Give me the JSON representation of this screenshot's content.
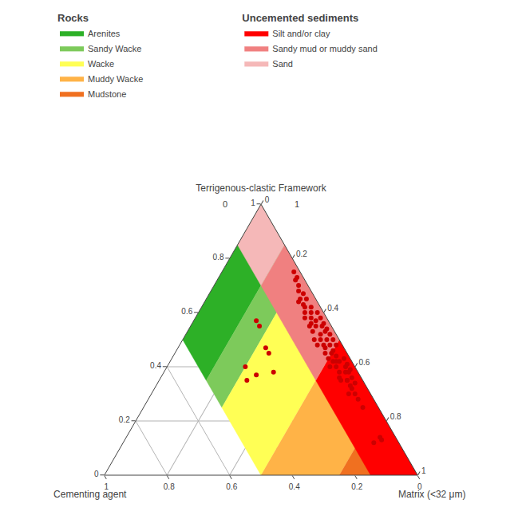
{
  "chart_data": {
    "type": "ternary",
    "grid": true,
    "ternary_axes": [
      {
        "label": "Terrigenous-clastic Framework",
        "lim": [
          0,
          1
        ],
        "ticks": [
          0,
          0.2,
          0.4,
          0.6,
          0.8,
          1
        ]
      },
      {
        "label": "Matrix (<32 μm)",
        "lim": [
          0,
          1
        ],
        "ticks": [
          0,
          0.2,
          0.4,
          0.6,
          0.8,
          1
        ]
      },
      {
        "label": "Cementing agent",
        "lim": [
          0,
          1
        ],
        "ticks": [
          0,
          0.2,
          0.4,
          0.6,
          0.8,
          1
        ]
      }
    ],
    "annotations": [
      {
        "text": "0"
      },
      {
        "text": "1"
      }
    ],
    "legend_groups": [
      {
        "title": "Rocks",
        "series": [
          {
            "name": "Arenites",
            "color": "#2db027",
            "type": "area",
            "values": [
              [
                1.0,
                0.0,
                0.0
              ],
              [
                0.85,
                0.15,
                0.0
              ],
              [
                0.35,
                0.15,
                0.5
              ],
              [
                0.5,
                0.0,
                0.5
              ]
            ]
          },
          {
            "name": "Sandy Wacke",
            "color": "#7dca5b",
            "type": "area",
            "values": [
              [
                0.85,
                0.15,
                0.0
              ],
              [
                0.75,
                0.25,
                0.0
              ],
              [
                0.25,
                0.25,
                0.5
              ],
              [
                0.35,
                0.15,
                0.5
              ]
            ]
          },
          {
            "name": "Wacke",
            "color": "#ffff55",
            "type": "area",
            "values": [
              [
                0.75,
                0.25,
                0.0
              ],
              [
                0.5,
                0.5,
                0.0
              ],
              [
                0.0,
                0.5,
                0.5
              ],
              [
                0.25,
                0.25,
                0.5
              ]
            ]
          },
          {
            "name": "Muddy Wacke",
            "color": "#ffb347",
            "type": "area",
            "values": [
              [
                0.5,
                0.5,
                0.0
              ],
              [
                0.25,
                0.75,
                0.0
              ],
              [
                0.0,
                0.75,
                0.25
              ],
              [
                0.0,
                0.5,
                0.5
              ]
            ]
          },
          {
            "name": "Mudstone",
            "color": "#f07020",
            "type": "area",
            "values": [
              [
                0.25,
                0.75,
                0.0
              ],
              [
                0.0,
                1.0,
                0.0
              ],
              [
                0.0,
                0.75,
                0.25
              ]
            ]
          }
        ]
      },
      {
        "title": "Uncemented sediments",
        "series": [
          {
            "name": "Silt and/or clay",
            "color": "#ff0000",
            "type": "area",
            "values": [
              [
                0.5,
                0.5,
                0.0
              ],
              [
                0.0,
                1.0,
                0.0
              ],
              [
                0.0,
                0.85,
                0.15
              ],
              [
                0.35,
                0.5,
                0.15
              ]
            ]
          },
          {
            "name": "Sandy mud or muddy sand",
            "color": "#f08080",
            "type": "area",
            "values": [
              [
                0.85,
                0.15,
                0.0
              ],
              [
                0.5,
                0.5,
                0.0
              ],
              [
                0.35,
                0.5,
                0.15
              ],
              [
                0.7,
                0.15,
                0.15
              ]
            ]
          },
          {
            "name": "Sand",
            "color": "#f5b8b8",
            "type": "area",
            "values": [
              [
                1.0,
                0.0,
                0.0
              ],
              [
                0.85,
                0.15,
                0.0
              ],
              [
                0.7,
                0.15,
                0.15
              ],
              [
                0.85,
                0.0,
                0.15
              ]
            ]
          }
        ]
      }
    ],
    "points": {
      "type": "scatter",
      "color": "#cc0000",
      "marker": "circle",
      "values": [
        [
          0.3,
          0.65,
          0.05
        ],
        [
          0.28,
          0.67,
          0.05
        ],
        [
          0.25,
          0.7,
          0.05
        ],
        [
          0.12,
          0.8,
          0.08
        ],
        [
          0.13,
          0.82,
          0.05
        ],
        [
          0.14,
          0.81,
          0.05
        ],
        [
          0.55,
          0.4,
          0.05
        ],
        [
          0.5,
          0.42,
          0.08
        ],
        [
          0.48,
          0.44,
          0.08
        ],
        [
          0.47,
          0.47,
          0.06
        ],
        [
          0.45,
          0.48,
          0.07
        ],
        [
          0.45,
          0.5,
          0.05
        ],
        [
          0.43,
          0.5,
          0.07
        ],
        [
          0.42,
          0.52,
          0.06
        ],
        [
          0.42,
          0.53,
          0.05
        ],
        [
          0.4,
          0.52,
          0.08
        ],
        [
          0.4,
          0.54,
          0.06
        ],
        [
          0.38,
          0.56,
          0.06
        ],
        [
          0.38,
          0.58,
          0.04
        ],
        [
          0.36,
          0.57,
          0.07
        ],
        [
          0.35,
          0.58,
          0.07
        ],
        [
          0.35,
          0.6,
          0.05
        ],
        [
          0.33,
          0.62,
          0.05
        ],
        [
          0.32,
          0.63,
          0.05
        ],
        [
          0.3,
          0.63,
          0.07
        ],
        [
          0.53,
          0.4,
          0.07
        ],
        [
          0.52,
          0.43,
          0.05
        ],
        [
          0.58,
          0.35,
          0.07
        ],
        [
          0.56,
          0.38,
          0.06
        ],
        [
          0.6,
          0.34,
          0.06
        ],
        [
          0.62,
          0.33,
          0.05
        ],
        [
          0.64,
          0.3,
          0.06
        ],
        [
          0.65,
          0.3,
          0.05
        ],
        [
          0.63,
          0.32,
          0.05
        ],
        [
          0.55,
          0.38,
          0.07
        ],
        [
          0.5,
          0.44,
          0.06
        ],
        [
          0.48,
          0.48,
          0.04
        ],
        [
          0.46,
          0.5,
          0.04
        ],
        [
          0.44,
          0.52,
          0.04
        ],
        [
          0.42,
          0.54,
          0.04
        ],
        [
          0.4,
          0.57,
          0.03
        ],
        [
          0.38,
          0.59,
          0.03
        ],
        [
          0.36,
          0.61,
          0.03
        ],
        [
          0.34,
          0.63,
          0.03
        ],
        [
          0.6,
          0.36,
          0.04
        ],
        [
          0.58,
          0.37,
          0.05
        ],
        [
          0.57,
          0.39,
          0.04
        ],
        [
          0.55,
          0.42,
          0.03
        ],
        [
          0.53,
          0.44,
          0.03
        ],
        [
          0.67,
          0.3,
          0.03
        ],
        [
          0.7,
          0.27,
          0.03
        ],
        [
          0.72,
          0.25,
          0.03
        ],
        [
          0.5,
          0.46,
          0.04
        ],
        [
          0.37,
          0.3,
          0.33
        ],
        [
          0.38,
          0.35,
          0.27
        ],
        [
          0.4,
          0.25,
          0.35
        ],
        [
          0.35,
          0.28,
          0.37
        ],
        [
          0.35,
          0.6,
          0.05
        ],
        [
          0.48,
          0.46,
          0.06
        ],
        [
          0.68,
          0.28,
          0.04
        ],
        [
          0.65,
          0.32,
          0.03
        ],
        [
          0.62,
          0.35,
          0.03
        ],
        [
          0.6,
          0.38,
          0.02
        ],
        [
          0.58,
          0.4,
          0.02
        ],
        [
          0.56,
          0.42,
          0.02
        ],
        [
          0.54,
          0.44,
          0.02
        ],
        [
          0.52,
          0.46,
          0.02
        ],
        [
          0.5,
          0.48,
          0.02
        ],
        [
          0.48,
          0.5,
          0.02
        ],
        [
          0.43,
          0.55,
          0.02
        ],
        [
          0.41,
          0.57,
          0.02
        ],
        [
          0.39,
          0.59,
          0.02
        ],
        [
          0.73,
          0.25,
          0.02
        ],
        [
          0.75,
          0.23,
          0.02
        ],
        [
          0.55,
          0.22,
          0.23
        ],
        [
          0.57,
          0.2,
          0.23
        ],
        [
          0.45,
          0.3,
          0.25
        ],
        [
          0.47,
          0.28,
          0.25
        ]
      ]
    }
  }
}
